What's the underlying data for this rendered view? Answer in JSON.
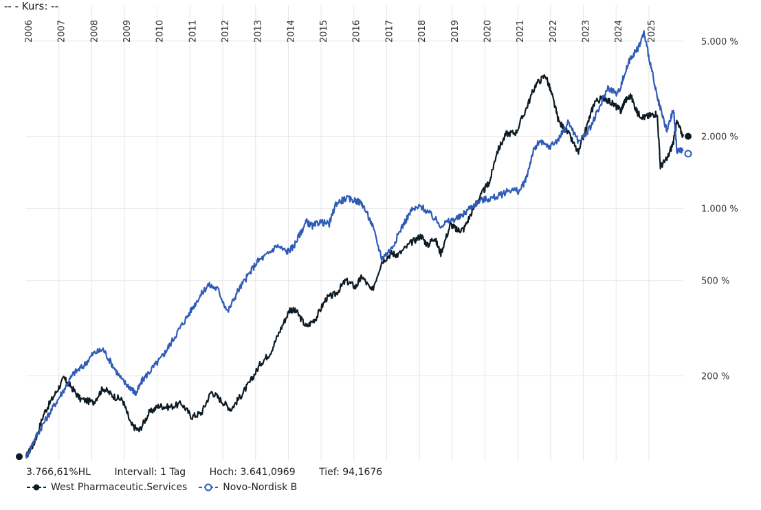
{
  "header": {
    "label": "--  - Kurs: --"
  },
  "colors": {
    "west": "#0d1b24",
    "novo": "#2f5bb7",
    "grid": "#e6e6e6"
  },
  "stats": {
    "perf": "3.766,61%HL",
    "interval": "Intervall: 1 Tag",
    "high": "Hoch: 3.641,0969",
    "low": "Tief: 94,1676"
  },
  "legend": {
    "west_label": "West Pharmaceutic.Services",
    "novo_label": "Novo-Nordisk B"
  },
  "chart_data": {
    "type": "line",
    "y_scale": "log",
    "ylim": [
      88,
      6500
    ],
    "y_ticks": [
      {
        "value": 200,
        "label": "200 %"
      },
      {
        "value": 500,
        "label": "500 %"
      },
      {
        "value": 1000,
        "label": "1.000 %"
      },
      {
        "value": 2000,
        "label": "2.000 %"
      },
      {
        "value": 5000,
        "label": "5.000 %"
      }
    ],
    "x_range": [
      2005.75,
      2025.8
    ],
    "x_ticks": [
      "2006",
      "2007",
      "2008",
      "2009",
      "2010",
      "2011",
      "2012",
      "2013",
      "2014",
      "2015",
      "2016",
      "2017",
      "2018",
      "2019",
      "2020",
      "2021",
      "2022",
      "2023",
      "2024",
      "2025"
    ],
    "series": [
      {
        "name": "West Pharmaceutic.Services",
        "color": "#0d1b24",
        "x": [
          2005.75,
          2006.0,
          2006.3,
          2006.6,
          2006.9,
          2007.1,
          2007.4,
          2007.8,
          2008.1,
          2008.4,
          2008.7,
          2008.95,
          2009.2,
          2009.5,
          2009.8,
          2010.1,
          2010.5,
          2010.8,
          2011.1,
          2011.4,
          2011.7,
          2012.0,
          2012.3,
          2012.6,
          2012.9,
          2013.2,
          2013.5,
          2013.8,
          2014.0,
          2014.3,
          2014.6,
          2014.9,
          2015.2,
          2015.5,
          2015.8,
          2016.0,
          2016.3,
          2016.6,
          2016.9,
          2017.1,
          2017.5,
          2017.8,
          2018.0,
          2018.2,
          2018.4,
          2018.7,
          2018.9,
          2019.1,
          2019.4,
          2019.7,
          2019.9,
          2020.1,
          2020.4,
          2020.7,
          2021.0,
          2021.3,
          2021.6,
          2021.8,
          2022.0,
          2022.3,
          2022.6,
          2022.9,
          2023.1,
          2023.4,
          2023.7,
          2023.9,
          2024.0,
          2024.2,
          2024.4,
          2024.6,
          2024.8,
          2025.0,
          2025.1,
          2025.3,
          2025.5,
          2025.6,
          2025.8
        ],
        "values": [
          92,
          105,
          140,
          165,
          195,
          182,
          160,
          155,
          178,
          165,
          158,
          125,
          118,
          140,
          150,
          148,
          153,
          135,
          140,
          172,
          158,
          145,
          165,
          190,
          225,
          250,
          310,
          380,
          370,
          320,
          350,
          420,
          440,
          500,
          470,
          520,
          450,
          600,
          650,
          640,
          720,
          770,
          700,
          760,
          650,
          860,
          810,
          820,
          1000,
          1180,
          1300,
          1700,
          2050,
          2080,
          2600,
          3300,
          3600,
          2950,
          2300,
          2050,
          1700,
          2300,
          2800,
          2900,
          2700,
          2550,
          2800,
          2950,
          2500,
          2400,
          2450,
          2500,
          1500,
          1600,
          1900,
          2300,
          2000
        ]
      },
      {
        "name": "Novo-Nordisk B",
        "color": "#2f5bb7",
        "x": [
          2005.75,
          2006.0,
          2006.3,
          2006.6,
          2006.9,
          2007.2,
          2007.5,
          2007.8,
          2008.1,
          2008.4,
          2008.7,
          2008.95,
          2009.1,
          2009.3,
          2009.6,
          2009.9,
          2010.1,
          2010.4,
          2010.7,
          2011.0,
          2011.3,
          2011.6,
          2011.9,
          2012.2,
          2012.5,
          2012.8,
          2013.1,
          2013.4,
          2013.7,
          2013.9,
          2014.1,
          2014.3,
          2014.5,
          2014.7,
          2015.0,
          2015.2,
          2015.5,
          2015.8,
          2016.0,
          2016.3,
          2016.6,
          2016.9,
          2017.2,
          2017.5,
          2017.8,
          2018.1,
          2018.4,
          2018.7,
          2019.0,
          2019.3,
          2019.6,
          2019.9,
          2020.2,
          2020.5,
          2020.8,
          2021.0,
          2021.2,
          2021.4,
          2021.7,
          2022.0,
          2022.3,
          2022.6,
          2022.9,
          2023.2,
          2023.5,
          2023.8,
          2024.0,
          2024.2,
          2024.4,
          2024.6,
          2024.8,
          2025.0,
          2025.1,
          2025.3,
          2025.5,
          2025.6,
          2025.8
        ],
        "values": [
          92,
          108,
          128,
          150,
          175,
          205,
          220,
          248,
          258,
          220,
          190,
          178,
          168,
          192,
          215,
          240,
          265,
          310,
          360,
          420,
          480,
          460,
          370,
          450,
          520,
          600,
          640,
          700,
          660,
          690,
          780,
          880,
          840,
          880,
          860,
          1050,
          1100,
          1080,
          1050,
          860,
          620,
          680,
          830,
          980,
          1020,
          940,
          850,
          890,
          920,
          1010,
          1080,
          1100,
          1130,
          1200,
          1180,
          1320,
          1700,
          1900,
          1800,
          1950,
          2300,
          1900,
          2100,
          2550,
          3200,
          3000,
          3600,
          4300,
          4600,
          5400,
          4000,
          2900,
          2600,
          2100,
          2600,
          1750,
          1750
        ]
      }
    ]
  }
}
